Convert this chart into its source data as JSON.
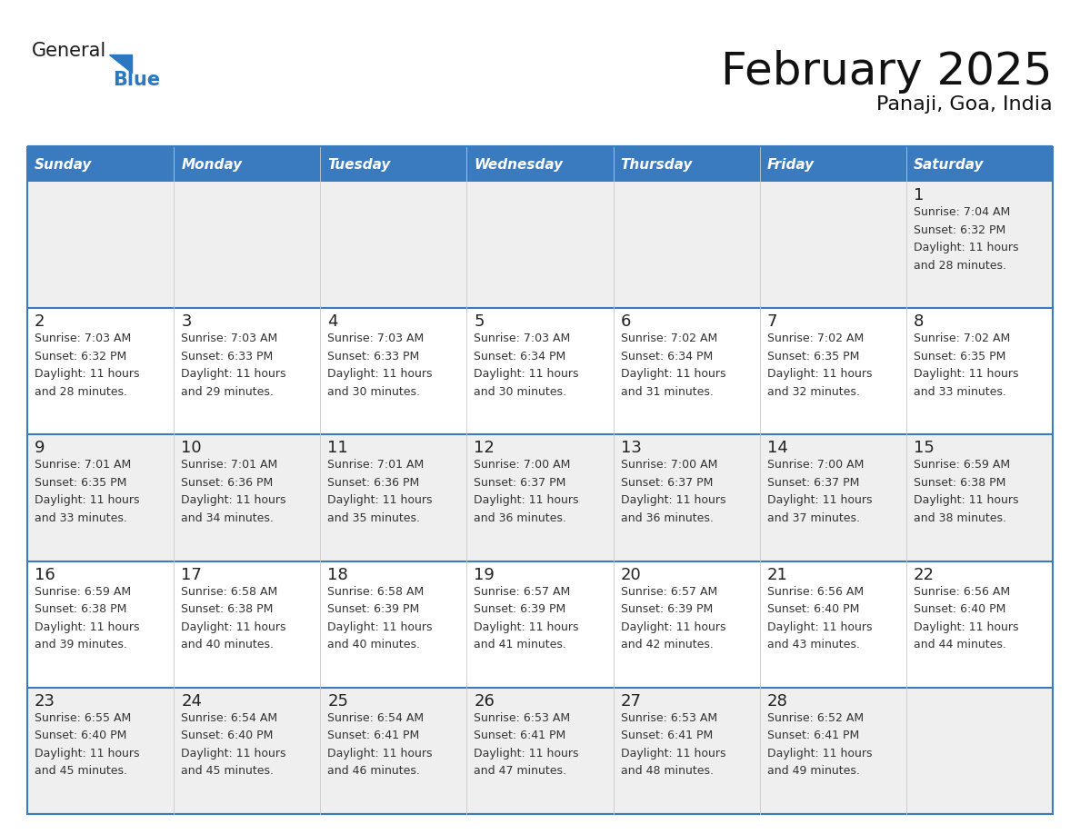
{
  "title": "February 2025",
  "subtitle": "Panaji, Goa, India",
  "days_of_week": [
    "Sunday",
    "Monday",
    "Tuesday",
    "Wednesday",
    "Thursday",
    "Friday",
    "Saturday"
  ],
  "header_bg": "#3a7abf",
  "header_text": "#ffffff",
  "row_bg_odd": "#efefef",
  "row_bg_even": "#ffffff",
  "cell_text_color": "#333333",
  "day_number_color": "#222222",
  "border_color": "#3a7abf",
  "divider_color": "#3a7abf",
  "calendar_data": [
    [
      null,
      null,
      null,
      null,
      null,
      null,
      {
        "day": 1,
        "sunrise": "7:04 AM",
        "sunset": "6:32 PM",
        "daylight": "11 hours and 28 minutes."
      }
    ],
    [
      {
        "day": 2,
        "sunrise": "7:03 AM",
        "sunset": "6:32 PM",
        "daylight": "11 hours and 28 minutes."
      },
      {
        "day": 3,
        "sunrise": "7:03 AM",
        "sunset": "6:33 PM",
        "daylight": "11 hours and 29 minutes."
      },
      {
        "day": 4,
        "sunrise": "7:03 AM",
        "sunset": "6:33 PM",
        "daylight": "11 hours and 30 minutes."
      },
      {
        "day": 5,
        "sunrise": "7:03 AM",
        "sunset": "6:34 PM",
        "daylight": "11 hours and 30 minutes."
      },
      {
        "day": 6,
        "sunrise": "7:02 AM",
        "sunset": "6:34 PM",
        "daylight": "11 hours and 31 minutes."
      },
      {
        "day": 7,
        "sunrise": "7:02 AM",
        "sunset": "6:35 PM",
        "daylight": "11 hours and 32 minutes."
      },
      {
        "day": 8,
        "sunrise": "7:02 AM",
        "sunset": "6:35 PM",
        "daylight": "11 hours and 33 minutes."
      }
    ],
    [
      {
        "day": 9,
        "sunrise": "7:01 AM",
        "sunset": "6:35 PM",
        "daylight": "11 hours and 33 minutes."
      },
      {
        "day": 10,
        "sunrise": "7:01 AM",
        "sunset": "6:36 PM",
        "daylight": "11 hours and 34 minutes."
      },
      {
        "day": 11,
        "sunrise": "7:01 AM",
        "sunset": "6:36 PM",
        "daylight": "11 hours and 35 minutes."
      },
      {
        "day": 12,
        "sunrise": "7:00 AM",
        "sunset": "6:37 PM",
        "daylight": "11 hours and 36 minutes."
      },
      {
        "day": 13,
        "sunrise": "7:00 AM",
        "sunset": "6:37 PM",
        "daylight": "11 hours and 36 minutes."
      },
      {
        "day": 14,
        "sunrise": "7:00 AM",
        "sunset": "6:37 PM",
        "daylight": "11 hours and 37 minutes."
      },
      {
        "day": 15,
        "sunrise": "6:59 AM",
        "sunset": "6:38 PM",
        "daylight": "11 hours and 38 minutes."
      }
    ],
    [
      {
        "day": 16,
        "sunrise": "6:59 AM",
        "sunset": "6:38 PM",
        "daylight": "11 hours and 39 minutes."
      },
      {
        "day": 17,
        "sunrise": "6:58 AM",
        "sunset": "6:38 PM",
        "daylight": "11 hours and 40 minutes."
      },
      {
        "day": 18,
        "sunrise": "6:58 AM",
        "sunset": "6:39 PM",
        "daylight": "11 hours and 40 minutes."
      },
      {
        "day": 19,
        "sunrise": "6:57 AM",
        "sunset": "6:39 PM",
        "daylight": "11 hours and 41 minutes."
      },
      {
        "day": 20,
        "sunrise": "6:57 AM",
        "sunset": "6:39 PM",
        "daylight": "11 hours and 42 minutes."
      },
      {
        "day": 21,
        "sunrise": "6:56 AM",
        "sunset": "6:40 PM",
        "daylight": "11 hours and 43 minutes."
      },
      {
        "day": 22,
        "sunrise": "6:56 AM",
        "sunset": "6:40 PM",
        "daylight": "11 hours and 44 minutes."
      }
    ],
    [
      {
        "day": 23,
        "sunrise": "6:55 AM",
        "sunset": "6:40 PM",
        "daylight": "11 hours and 45 minutes."
      },
      {
        "day": 24,
        "sunrise": "6:54 AM",
        "sunset": "6:40 PM",
        "daylight": "11 hours and 45 minutes."
      },
      {
        "day": 25,
        "sunrise": "6:54 AM",
        "sunset": "6:41 PM",
        "daylight": "11 hours and 46 minutes."
      },
      {
        "day": 26,
        "sunrise": "6:53 AM",
        "sunset": "6:41 PM",
        "daylight": "11 hours and 47 minutes."
      },
      {
        "day": 27,
        "sunrise": "6:53 AM",
        "sunset": "6:41 PM",
        "daylight": "11 hours and 48 minutes."
      },
      {
        "day": 28,
        "sunrise": "6:52 AM",
        "sunset": "6:41 PM",
        "daylight": "11 hours and 49 minutes."
      },
      null
    ]
  ],
  "logo_text_general": "General",
  "logo_text_blue": "Blue",
  "logo_blue_color": "#2b78c0",
  "logo_dark_color": "#1a1a1a",
  "title_fontsize": 36,
  "subtitle_fontsize": 16,
  "header_fontsize": 11,
  "day_num_fontsize": 13,
  "cell_fontsize": 9
}
